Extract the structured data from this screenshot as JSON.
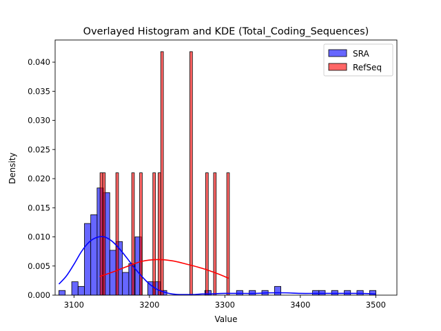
{
  "chart_data": {
    "type": "bar",
    "title": "Overlayed Histogram and KDE (Total_Coding_Sequences)",
    "xlabel": "Value",
    "ylabel": "Density",
    "xlim": [
      3075,
      3528
    ],
    "ylim": [
      0,
      0.0438
    ],
    "x_ticks": [
      3100,
      3200,
      3300,
      3400,
      3500
    ],
    "y_ticks": [
      0.0,
      0.005,
      0.01,
      0.015,
      0.02,
      0.025,
      0.03,
      0.035,
      0.04
    ],
    "y_tick_labels": [
      "0.000",
      "0.005",
      "0.010",
      "0.015",
      "0.020",
      "0.025",
      "0.030",
      "0.035",
      "0.040"
    ],
    "grid": false,
    "legend_position": "top-right",
    "series": [
      {
        "name": "SRA",
        "color": "#0000ff",
        "bin_width": 8.4,
        "bins": [
          {
            "x": 3080.0,
            "y": 0.0008
          },
          {
            "x": 3097.0,
            "y": 0.0023
          },
          {
            "x": 3105.4,
            "y": 0.0015
          },
          {
            "x": 3113.8,
            "y": 0.0123
          },
          {
            "x": 3122.2,
            "y": 0.0138
          },
          {
            "x": 3130.6,
            "y": 0.0184
          },
          {
            "x": 3139.0,
            "y": 0.0176
          },
          {
            "x": 3147.4,
            "y": 0.0077
          },
          {
            "x": 3155.8,
            "y": 0.0092
          },
          {
            "x": 3164.2,
            "y": 0.0039
          },
          {
            "x": 3172.6,
            "y": 0.0054
          },
          {
            "x": 3181.0,
            "y": 0.01
          },
          {
            "x": 3197.8,
            "y": 0.0023
          },
          {
            "x": 3206.2,
            "y": 0.0023
          },
          {
            "x": 3214.6,
            "y": 0.0008
          },
          {
            "x": 3273.4,
            "y": 0.0008
          },
          {
            "x": 3315.4,
            "y": 0.0008
          },
          {
            "x": 3332.2,
            "y": 0.0008
          },
          {
            "x": 3349.0,
            "y": 0.0008
          },
          {
            "x": 3365.8,
            "y": 0.0015
          },
          {
            "x": 3416.2,
            "y": 0.0008
          },
          {
            "x": 3424.6,
            "y": 0.0008
          },
          {
            "x": 3441.4,
            "y": 0.0008
          },
          {
            "x": 3458.2,
            "y": 0.0008
          },
          {
            "x": 3475.0,
            "y": 0.0008
          },
          {
            "x": 3491.8,
            "y": 0.0008
          }
        ],
        "kde_x": [
          3080,
          3090,
          3100,
          3110,
          3120,
          3130,
          3140,
          3150,
          3160,
          3170,
          3180,
          3190,
          3200,
          3210,
          3220,
          3230,
          3240,
          3250,
          3260,
          3270,
          3280,
          3300,
          3320,
          3340,
          3360,
          3380,
          3400,
          3420,
          3440,
          3460,
          3480,
          3500
        ],
        "kde_y": [
          0.0019,
          0.0033,
          0.0053,
          0.0075,
          0.0091,
          0.0099,
          0.01,
          0.0093,
          0.008,
          0.0064,
          0.0047,
          0.0032,
          0.0019,
          0.001,
          0.0005,
          0.0002,
          0.0001,
          0.0001,
          0.0001,
          0.0002,
          0.0002,
          0.0003,
          0.0003,
          0.0003,
          0.0004,
          0.0004,
          0.0003,
          0.0003,
          0.0003,
          0.0003,
          0.0003,
          0.0002
        ]
      },
      {
        "name": "RefSeq",
        "color": "#ff0000",
        "bin_width": 3.5,
        "bins": [
          {
            "x": 3134.5,
            "y": 0.021
          },
          {
            "x": 3138.0,
            "y": 0.021
          },
          {
            "x": 3155.5,
            "y": 0.021
          },
          {
            "x": 3176.5,
            "y": 0.021
          },
          {
            "x": 3187.0,
            "y": 0.021
          },
          {
            "x": 3204.5,
            "y": 0.021
          },
          {
            "x": 3211.5,
            "y": 0.021
          },
          {
            "x": 3215.0,
            "y": 0.0418
          },
          {
            "x": 3253.5,
            "y": 0.0418
          },
          {
            "x": 3274.5,
            "y": 0.021
          },
          {
            "x": 3285.0,
            "y": 0.021
          },
          {
            "x": 3302.5,
            "y": 0.021
          }
        ],
        "kde_x": [
          3134,
          3150,
          3170,
          3190,
          3210,
          3230,
          3250,
          3270,
          3290,
          3305
        ],
        "kde_y": [
          0.0032,
          0.0039,
          0.0049,
          0.0058,
          0.0061,
          0.0059,
          0.0053,
          0.0046,
          0.0037,
          0.0029
        ]
      }
    ]
  }
}
